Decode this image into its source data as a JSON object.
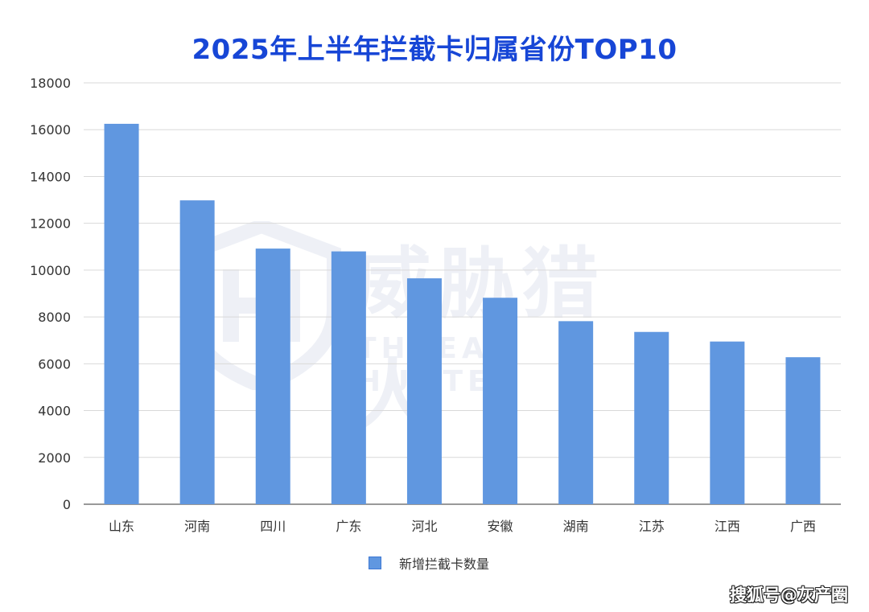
{
  "chart_data": {
    "type": "bar",
    "title": "2025年上半年拦截卡归属省份TOP10",
    "categories": [
      "山东",
      "河南",
      "四川",
      "广东",
      "河北",
      "安徽",
      "湖南",
      "江苏",
      "江西",
      "广西"
    ],
    "series": [
      {
        "name": "新增拦截卡数量",
        "values": [
          16250,
          12980,
          10920,
          10800,
          9650,
          8820,
          7820,
          7360,
          6950,
          6280
        ]
      }
    ],
    "ylim": [
      0,
      18000
    ],
    "yticks": [
      0,
      2000,
      4000,
      6000,
      8000,
      10000,
      12000,
      14000,
      16000,
      18000
    ],
    "grid": true,
    "legend_position": "bottom-center",
    "bar_color": "#6097e0"
  },
  "background_logo": {
    "text_cn": "威胁猎人",
    "text_en": "THREAT HUNTER",
    "icon": "shield-logo-icon"
  },
  "watermark": {
    "text": "搜狐号@灰产圈"
  }
}
